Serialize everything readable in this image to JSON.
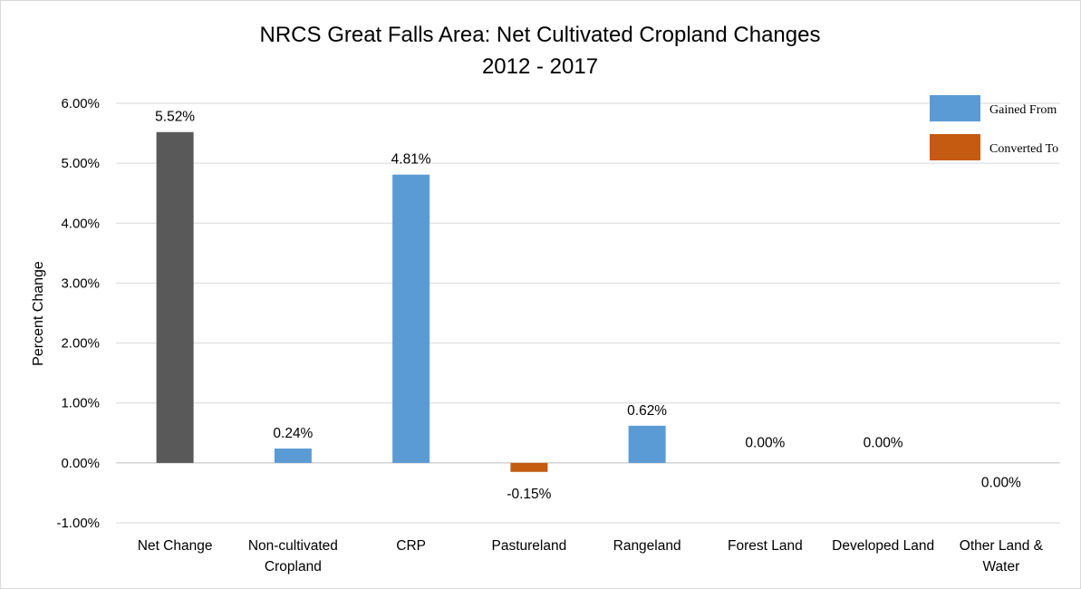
{
  "chart_data": {
    "type": "bar",
    "title": "NRCS Great Falls Area: Net Cultivated Cropland Changes",
    "subtitle": "2012 - 2017",
    "xlabel": "",
    "ylabel": "Percent Change",
    "ylim": [
      -1.0,
      6.0
    ],
    "yticks": [
      "6.00%",
      "5.00%",
      "4.00%",
      "3.00%",
      "2.00%",
      "1.00%",
      "0.00%",
      "-1.00%"
    ],
    "ytick_values": [
      6,
      5,
      4,
      3,
      2,
      1,
      0,
      -1
    ],
    "grid": true,
    "legend_position": "top-right",
    "legend": [
      {
        "label": "Gained From",
        "color": "#5b9bd5"
      },
      {
        "label": "Converted To",
        "color": "#c55a11"
      }
    ],
    "categories": [
      [
        "Net Change"
      ],
      [
        "Non-cultivated",
        "Cropland"
      ],
      [
        "CRP"
      ],
      [
        "Pastureland"
      ],
      [
        "Rangeland"
      ],
      [
        "Forest Land"
      ],
      [
        "Developed Land"
      ],
      [
        "Other Land &",
        "Water"
      ]
    ],
    "values": [
      5.52,
      0.24,
      4.81,
      -0.15,
      0.62,
      0.0,
      0.0,
      0.0
    ],
    "data_labels": [
      "5.52%",
      "0.24%",
      "4.81%",
      "-0.15%",
      "0.62%",
      "0.00%",
      "0.00%",
      "0.00%"
    ],
    "bar_colors": [
      "#595959",
      "#5b9bd5",
      "#5b9bd5",
      "#c55a11",
      "#5b9bd5",
      "#5b9bd5",
      "#5b9bd5",
      "#5b9bd5"
    ]
  }
}
